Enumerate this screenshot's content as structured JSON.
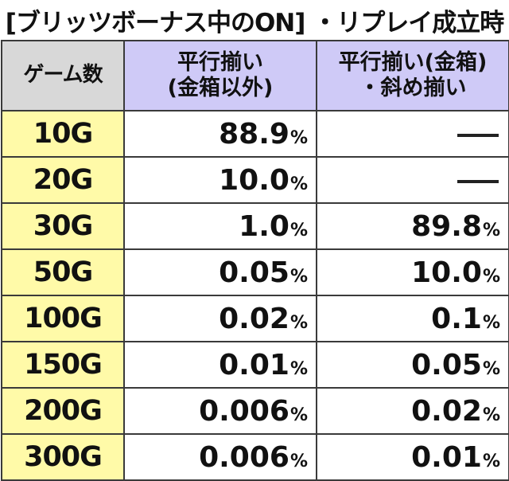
{
  "title": "[ブリッツボーナス中のON] ・リプレイ成立時",
  "headers": {
    "game": "ゲーム数",
    "col1_line1": "平行揃い",
    "col1_line2": "(金箱以外)",
    "col2_line1": "平行揃い(金箱)",
    "col2_line2": "・斜め揃い"
  },
  "rows": [
    {
      "game": "10G",
      "col1": "88.9",
      "col2": "—"
    },
    {
      "game": "20G",
      "col1": "10.0",
      "col2": "—"
    },
    {
      "game": "30G",
      "col1": "1.0",
      "col2": "89.8"
    },
    {
      "game": "50G",
      "col1": "0.05",
      "col2": "10.0"
    },
    {
      "game": "100G",
      "col1": "0.02",
      "col2": "0.1"
    },
    {
      "game": "150G",
      "col1": "0.01",
      "col2": "0.05"
    },
    {
      "game": "200G",
      "col1": "0.006",
      "col2": "0.02"
    },
    {
      "game": "300G",
      "col1": "0.006",
      "col2": "0.01"
    }
  ],
  "percent_symbol": "%",
  "colors": {
    "header_game": "#d8d8d8",
    "header_cols": "#cfcaf7",
    "game_cells": "#fffaa8"
  }
}
